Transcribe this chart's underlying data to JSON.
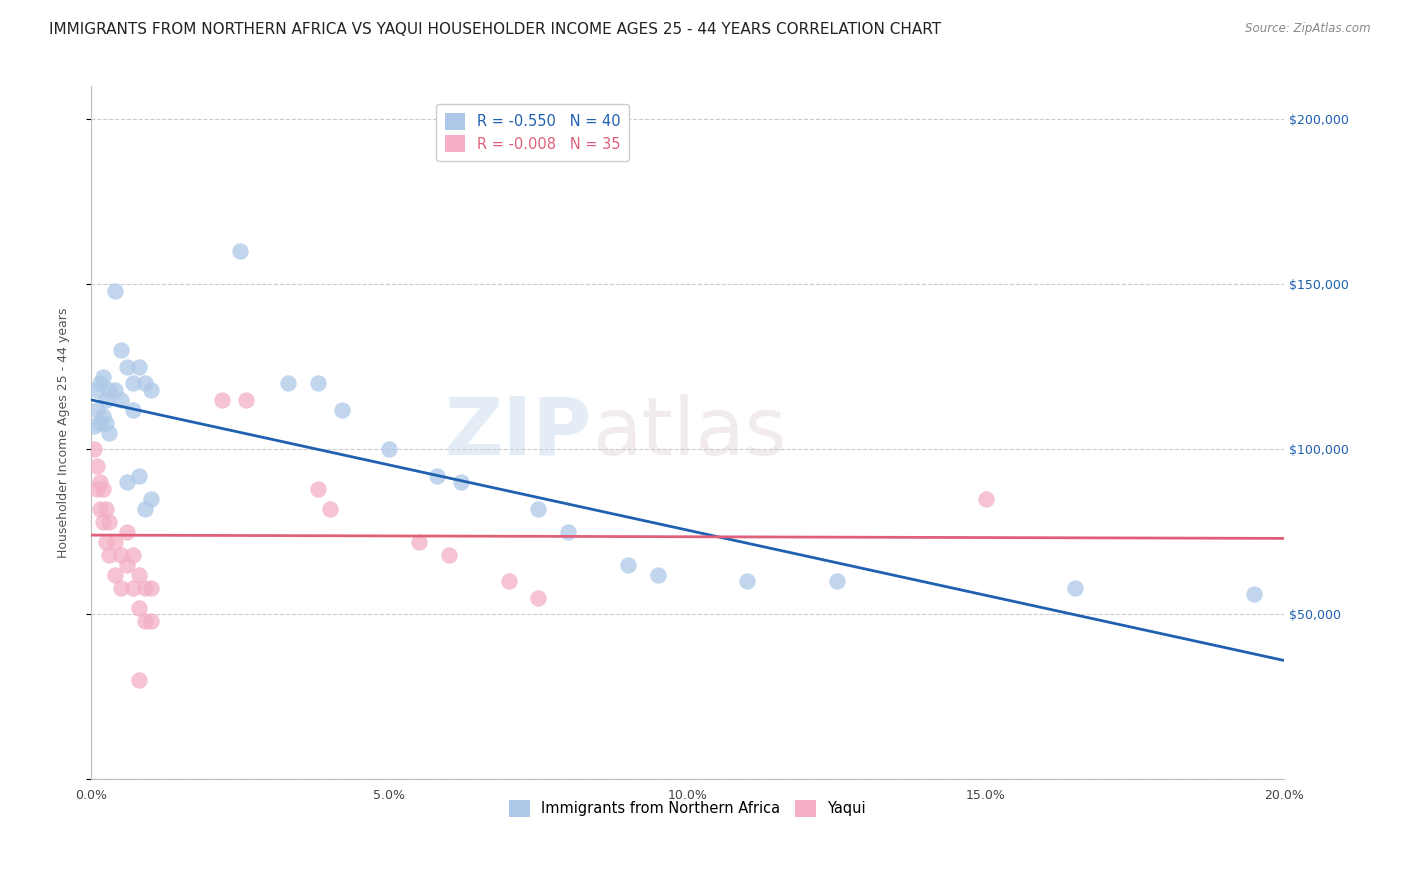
{
  "title": "IMMIGRANTS FROM NORTHERN AFRICA VS YAQUI HOUSEHOLDER INCOME AGES 25 - 44 YEARS CORRELATION CHART",
  "source": "Source: ZipAtlas.com",
  "ylabel": "Householder Income Ages 25 - 44 years",
  "legend_labels": [
    "Immigrants from Northern Africa",
    "Yaqui"
  ],
  "r_blue": -0.55,
  "n_blue": 40,
  "r_pink": -0.008,
  "n_pink": 35,
  "color_blue": "#adc8e8",
  "color_pink": "#f4afc4",
  "line_blue": "#2060b0",
  "line_pink": "#e0607a",
  "watermark_zip": "ZIP",
  "watermark_atlas": "atlas",
  "blue_scatter": [
    [
      0.0005,
      107000
    ],
    [
      0.001,
      118000
    ],
    [
      0.001,
      112000
    ],
    [
      0.0015,
      120000
    ],
    [
      0.0015,
      108000
    ],
    [
      0.002,
      122000
    ],
    [
      0.002,
      110000
    ],
    [
      0.0025,
      115000
    ],
    [
      0.0025,
      108000
    ],
    [
      0.003,
      118000
    ],
    [
      0.003,
      105000
    ],
    [
      0.004,
      148000
    ],
    [
      0.004,
      118000
    ],
    [
      0.005,
      130000
    ],
    [
      0.005,
      115000
    ],
    [
      0.006,
      125000
    ],
    [
      0.006,
      90000
    ],
    [
      0.007,
      120000
    ],
    [
      0.007,
      112000
    ],
    [
      0.008,
      125000
    ],
    [
      0.008,
      92000
    ],
    [
      0.009,
      120000
    ],
    [
      0.009,
      82000
    ],
    [
      0.01,
      118000
    ],
    [
      0.01,
      85000
    ],
    [
      0.025,
      160000
    ],
    [
      0.033,
      120000
    ],
    [
      0.038,
      120000
    ],
    [
      0.042,
      112000
    ],
    [
      0.05,
      100000
    ],
    [
      0.058,
      92000
    ],
    [
      0.062,
      90000
    ],
    [
      0.075,
      82000
    ],
    [
      0.08,
      75000
    ],
    [
      0.09,
      65000
    ],
    [
      0.095,
      62000
    ],
    [
      0.11,
      60000
    ],
    [
      0.125,
      60000
    ],
    [
      0.165,
      58000
    ],
    [
      0.195,
      56000
    ]
  ],
  "pink_scatter": [
    [
      0.0005,
      100000
    ],
    [
      0.001,
      95000
    ],
    [
      0.001,
      88000
    ],
    [
      0.0015,
      90000
    ],
    [
      0.0015,
      82000
    ],
    [
      0.002,
      88000
    ],
    [
      0.002,
      78000
    ],
    [
      0.0025,
      82000
    ],
    [
      0.0025,
      72000
    ],
    [
      0.003,
      78000
    ],
    [
      0.003,
      68000
    ],
    [
      0.004,
      72000
    ],
    [
      0.004,
      62000
    ],
    [
      0.005,
      68000
    ],
    [
      0.005,
      58000
    ],
    [
      0.006,
      75000
    ],
    [
      0.006,
      65000
    ],
    [
      0.007,
      68000
    ],
    [
      0.007,
      58000
    ],
    [
      0.008,
      62000
    ],
    [
      0.008,
      52000
    ],
    [
      0.009,
      58000
    ],
    [
      0.009,
      48000
    ],
    [
      0.01,
      58000
    ],
    [
      0.01,
      48000
    ],
    [
      0.022,
      115000
    ],
    [
      0.026,
      115000
    ],
    [
      0.038,
      88000
    ],
    [
      0.04,
      82000
    ],
    [
      0.055,
      72000
    ],
    [
      0.06,
      68000
    ],
    [
      0.07,
      60000
    ],
    [
      0.075,
      55000
    ],
    [
      0.15,
      85000
    ],
    [
      0.008,
      30000
    ]
  ],
  "blue_line": [
    [
      0.0,
      115000
    ],
    [
      0.2,
      36000
    ]
  ],
  "pink_line": [
    [
      0.0,
      74000
    ],
    [
      0.2,
      73000
    ]
  ],
  "xlim": [
    0.0,
    0.2
  ],
  "ylim": [
    0,
    210000
  ],
  "yticks": [
    0,
    50000,
    100000,
    150000,
    200000
  ],
  "ytick_labels_right": [
    "",
    "$50,000",
    "$100,000",
    "$150,000",
    "$200,000"
  ],
  "xticks": [
    0.0,
    0.05,
    0.1,
    0.15,
    0.2
  ],
  "xtick_labels": [
    "0.0%",
    "5.0%",
    "10.0%",
    "15.0%",
    "20.0%"
  ],
  "grid_color": "#cccccc",
  "bg_color": "#ffffff",
  "title_fontsize": 11,
  "axis_fontsize": 9,
  "tick_fontsize": 9,
  "right_tick_color": "#2060b0"
}
